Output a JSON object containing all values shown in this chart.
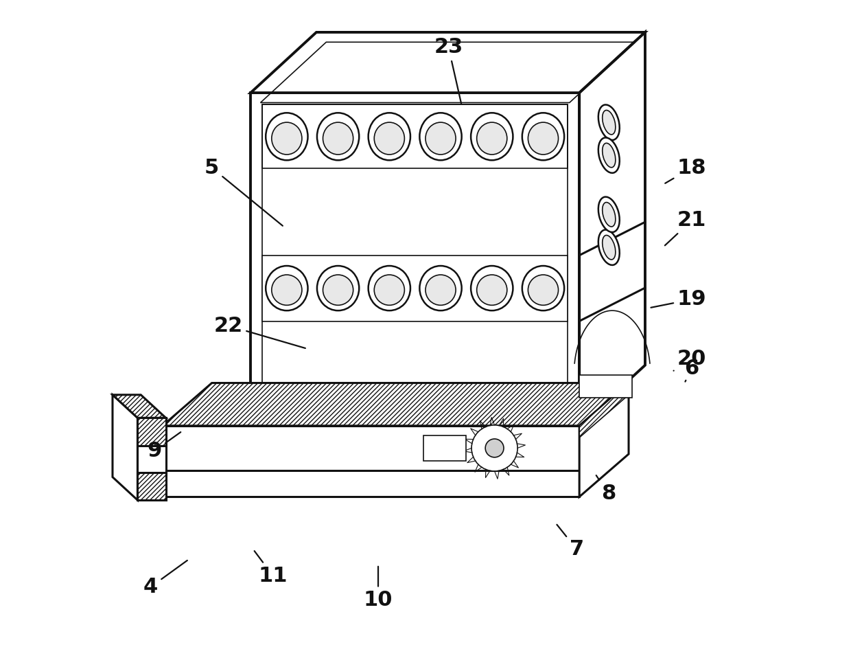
{
  "background_color": "#ffffff",
  "lc": "#111111",
  "lw_main": 2.2,
  "lw_thick": 2.8,
  "lw_thin": 1.2,
  "label_fontsize": 22,
  "labels": {
    "23": {
      "lpos": [
        0.535,
        0.072
      ],
      "tpos": [
        0.555,
        0.16
      ]
    },
    "5": {
      "lpos": [
        0.175,
        0.255
      ],
      "tpos": [
        0.285,
        0.345
      ]
    },
    "18": {
      "lpos": [
        0.905,
        0.255
      ],
      "tpos": [
        0.862,
        0.28
      ]
    },
    "21": {
      "lpos": [
        0.905,
        0.335
      ],
      "tpos": [
        0.862,
        0.375
      ]
    },
    "19": {
      "lpos": [
        0.905,
        0.455
      ],
      "tpos": [
        0.84,
        0.468
      ]
    },
    "20": {
      "lpos": [
        0.905,
        0.545
      ],
      "tpos": [
        0.875,
        0.565
      ]
    },
    "22": {
      "lpos": [
        0.2,
        0.495
      ],
      "tpos": [
        0.32,
        0.53
      ]
    },
    "6": {
      "lpos": [
        0.905,
        0.56
      ],
      "tpos": [
        0.895,
        0.58
      ]
    },
    "9": {
      "lpos": [
        0.088,
        0.685
      ],
      "tpos": [
        0.13,
        0.655
      ]
    },
    "4": {
      "lpos": [
        0.082,
        0.892
      ],
      "tpos": [
        0.14,
        0.85
      ]
    },
    "11": {
      "lpos": [
        0.268,
        0.875
      ],
      "tpos": [
        0.238,
        0.835
      ]
    },
    "10": {
      "lpos": [
        0.428,
        0.912
      ],
      "tpos": [
        0.428,
        0.858
      ]
    },
    "8": {
      "lpos": [
        0.778,
        0.75
      ],
      "tpos": [
        0.758,
        0.72
      ]
    },
    "7": {
      "lpos": [
        0.73,
        0.835
      ],
      "tpos": [
        0.698,
        0.795
      ]
    }
  }
}
